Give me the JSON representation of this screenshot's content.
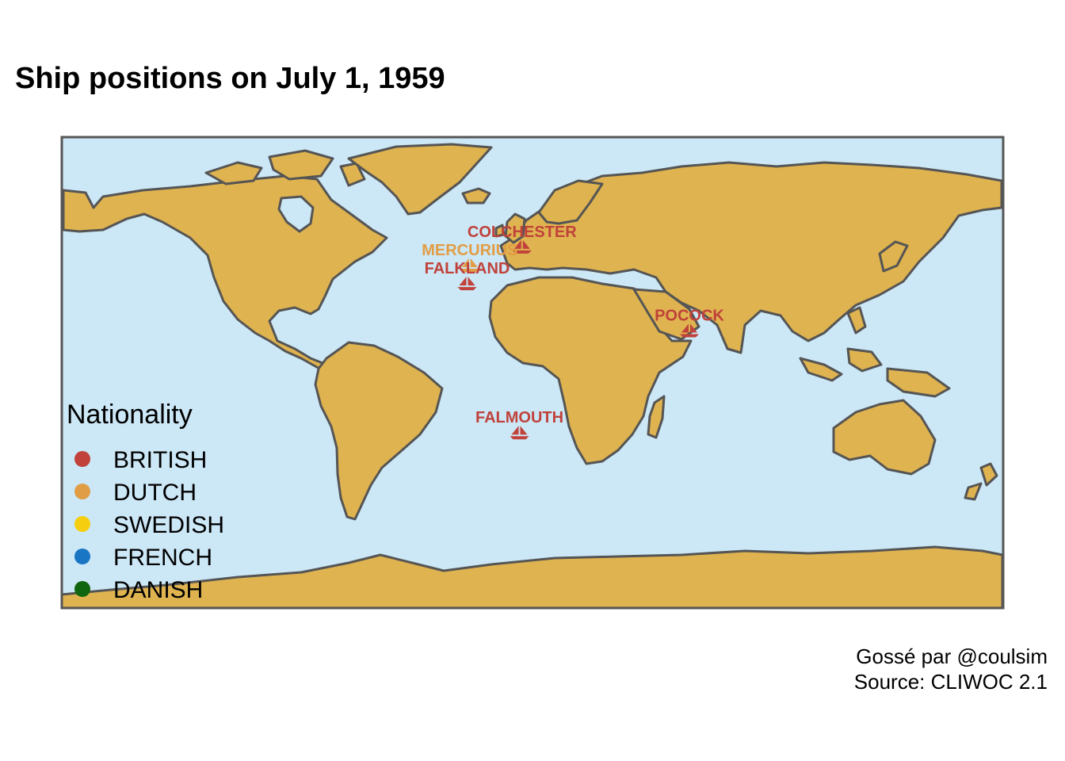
{
  "title": "Ship positions on July 1, 1959",
  "caption": {
    "line1": "Gossé par @coulsim",
    "line2": "Source: CLIWOC 2.1"
  },
  "legend": {
    "title": "Nationality",
    "items": [
      {
        "label": "BRITISH",
        "color": "#c0423b"
      },
      {
        "label": "DUTCH",
        "color": "#e19d45"
      },
      {
        "label": "SWEDISH",
        "color": "#f5cf0f"
      },
      {
        "label": "FRENCH",
        "color": "#1876c4"
      },
      {
        "label": "DANISH",
        "color": "#10650f"
      }
    ]
  },
  "colors": {
    "ocean": "#cce7f6",
    "land": "#dfb34f",
    "border": "#555555"
  },
  "ships": [
    {
      "name": "COLCHESTER",
      "nationality": "BRITISH",
      "lon": -4,
      "lat": 47
    },
    {
      "name": "MERCURIUS",
      "nationality": "DUTCH",
      "lon": -24,
      "lat": 40
    },
    {
      "name": "FALKLAND",
      "nationality": "BRITISH",
      "lon": -25,
      "lat": 33
    },
    {
      "name": "POCOCK",
      "nationality": "BRITISH",
      "lon": 60,
      "lat": 15
    },
    {
      "name": "FALMOUTH",
      "nationality": "BRITISH",
      "lon": -5,
      "lat": -24
    }
  ]
}
